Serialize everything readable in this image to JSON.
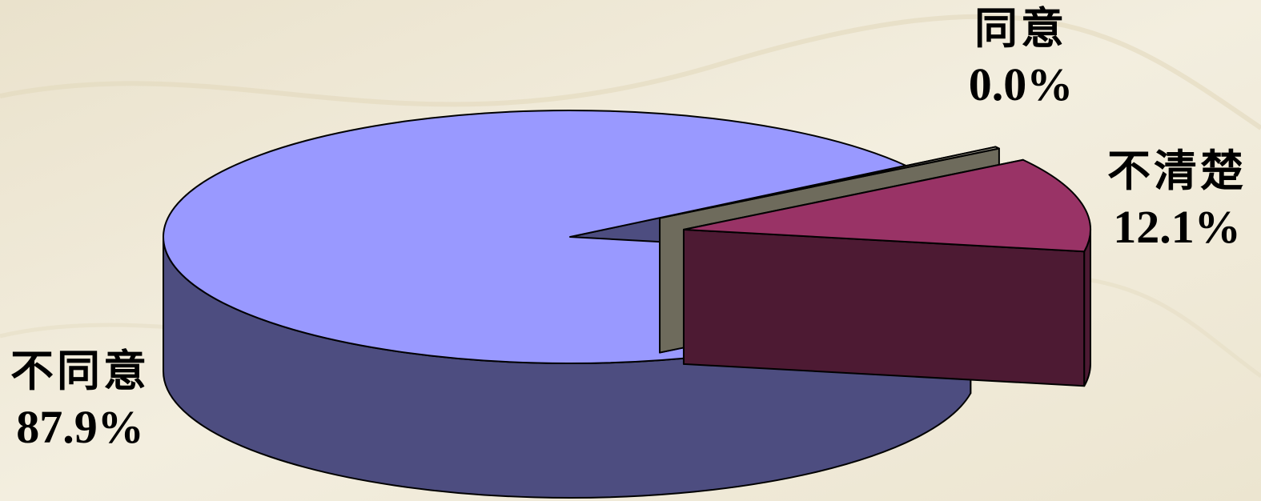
{
  "chart_data": {
    "type": "pie",
    "style": "3d-exploded",
    "slices": [
      {
        "name": "不同意",
        "value": 87.9,
        "label": "87.9%",
        "top_color": "#9999ff",
        "side_color": "#4d4d80"
      },
      {
        "name": "同意",
        "value": 0.0,
        "label": "0.0%",
        "top_color": "#a8a496",
        "side_color": "#6e6b5c"
      },
      {
        "name": "不清楚",
        "value": 12.1,
        "label": "12.1%",
        "top_color": "#993366",
        "side_color": "#4d1a33"
      }
    ]
  }
}
